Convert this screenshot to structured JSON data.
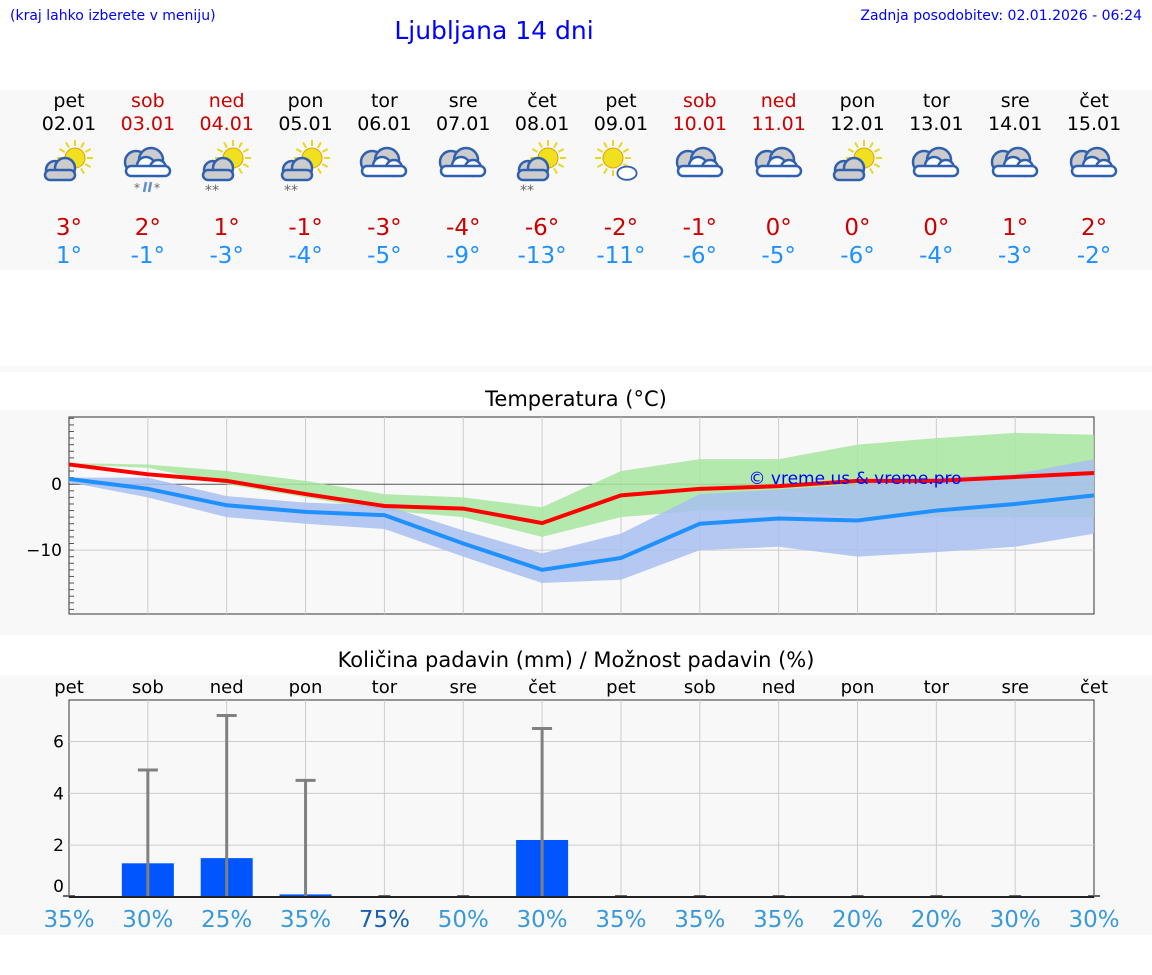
{
  "header": {
    "note": "(kraj lahko izberete v meniju)",
    "title": "Ljubljana 14 dni",
    "updated": "Zadnja posodobitev: 02.01.2026 - 06:24"
  },
  "days": [
    {
      "name": "pet",
      "date": "02.01",
      "weekend": false,
      "icon": "partly-cloudy-icon",
      "max": "3°",
      "min": "1°"
    },
    {
      "name": "sob",
      "date": "03.01",
      "weekend": true,
      "icon": "cloudy-sleet-icon",
      "max": "2°",
      "min": "-1°"
    },
    {
      "name": "ned",
      "date": "04.01",
      "weekend": true,
      "icon": "partly-cloudy-snow-icon",
      "max": "1°",
      "min": "-3°"
    },
    {
      "name": "pon",
      "date": "05.01",
      "weekend": false,
      "icon": "partly-cloudy-snow-icon",
      "max": "-1°",
      "min": "-4°"
    },
    {
      "name": "tor",
      "date": "06.01",
      "weekend": false,
      "icon": "cloudy-icon",
      "max": "-3°",
      "min": "-5°"
    },
    {
      "name": "sre",
      "date": "07.01",
      "weekend": false,
      "icon": "cloudy-icon",
      "max": "-4°",
      "min": "-9°"
    },
    {
      "name": "čet",
      "date": "08.01",
      "weekend": false,
      "icon": "partly-cloudy-snow-icon",
      "max": "-6°",
      "min": "-13°"
    },
    {
      "name": "pet",
      "date": "09.01",
      "weekend": false,
      "icon": "mostly-sunny-icon",
      "max": "-2°",
      "min": "-11°"
    },
    {
      "name": "sob",
      "date": "10.01",
      "weekend": true,
      "icon": "cloudy-icon",
      "max": "-1°",
      "min": "-6°"
    },
    {
      "name": "ned",
      "date": "11.01",
      "weekend": true,
      "icon": "cloudy-icon",
      "max": "0°",
      "min": "-5°"
    },
    {
      "name": "pon",
      "date": "12.01",
      "weekend": false,
      "icon": "partly-cloudy-icon",
      "max": "0°",
      "min": "-6°"
    },
    {
      "name": "tor",
      "date": "13.01",
      "weekend": false,
      "icon": "cloudy-icon",
      "max": "0°",
      "min": "-4°"
    },
    {
      "name": "sre",
      "date": "14.01",
      "weekend": false,
      "icon": "cloudy-icon",
      "max": "1°",
      "min": "-3°"
    },
    {
      "name": "čet",
      "date": "15.01",
      "weekend": false,
      "icon": "cloudy-icon",
      "max": "2°",
      "min": "-2°"
    }
  ],
  "colors": {
    "max": "#ff0000",
    "min": "#1e90ff",
    "maxBand": "#a8e6a0",
    "minBand": "#a8c0f0",
    "bar": "#0055ff",
    "err": "#808080"
  },
  "chart_data": [
    {
      "type": "line",
      "title": "Temperatura (°C)",
      "ylim": [
        -19.7,
        10.2
      ],
      "yticks": [
        "0",
        "−10"
      ],
      "ytick_values": [
        0,
        -10
      ],
      "watermark": "© vreme.us & vreme.pro",
      "series": [
        {
          "name": "max",
          "values": [
            3,
            1.5,
            0.5,
            -1.5,
            -3.3,
            -3.7,
            -5.9,
            -1.7,
            -0.7,
            -0.3,
            0.5,
            0.5,
            1.1,
            1.7
          ],
          "band_low": [
            3,
            2.5,
            0,
            -2,
            -4,
            -5,
            -8,
            -5,
            -4,
            -4,
            -5,
            -5,
            -5,
            -5
          ],
          "band_high": [
            3.2,
            3,
            2,
            0.5,
            -1.5,
            -2,
            -3.5,
            2,
            3.8,
            3.8,
            6,
            7,
            7.8,
            7.5
          ]
        },
        {
          "name": "min",
          "values": [
            0.8,
            -0.7,
            -3.2,
            -4.2,
            -4.7,
            -9,
            -13,
            -11.2,
            -6,
            -5.2,
            -5.5,
            -4,
            -3,
            -1.7
          ],
          "band_low": [
            0.3,
            -2,
            -5,
            -6,
            -6.8,
            -11,
            -15,
            -14.5,
            -10,
            -9.5,
            -11,
            -10.3,
            -9.5,
            -7.5
          ],
          "band_high": [
            1,
            1,
            -1.8,
            -2.8,
            -3.2,
            -7,
            -10.5,
            -7.5,
            -1.5,
            -0.8,
            0,
            1,
            1.5,
            3.8
          ]
        }
      ]
    },
    {
      "type": "bar",
      "title": "Količina padavin (mm) / Možnost padavin (%)",
      "ylim": [
        0,
        7.6
      ],
      "yticks": [
        "0",
        "2",
        "4",
        "6"
      ],
      "ytick_values": [
        0,
        2,
        4,
        6
      ],
      "categories": [
        "pet",
        "sob",
        "ned",
        "pon",
        "tor",
        "sre",
        "čet",
        "pet",
        "sob",
        "ned",
        "pon",
        "tor",
        "sre",
        "čet"
      ],
      "values": [
        0,
        1.3,
        1.5,
        0.1,
        0,
        0,
        2.2,
        0,
        0,
        0,
        0,
        0,
        0,
        0
      ],
      "error_high": [
        0,
        4.9,
        7.0,
        4.5,
        0,
        0,
        6.5,
        0,
        0,
        0,
        0,
        0,
        0,
        0
      ],
      "probability": [
        "35%",
        "30%",
        "25%",
        "35%",
        "75%",
        "50%",
        "30%",
        "35%",
        "35%",
        "35%",
        "20%",
        "20%",
        "30%",
        "30%"
      ],
      "probability_highlight": [
        false,
        false,
        false,
        false,
        true,
        false,
        false,
        false,
        false,
        false,
        false,
        false,
        false,
        false
      ]
    }
  ]
}
